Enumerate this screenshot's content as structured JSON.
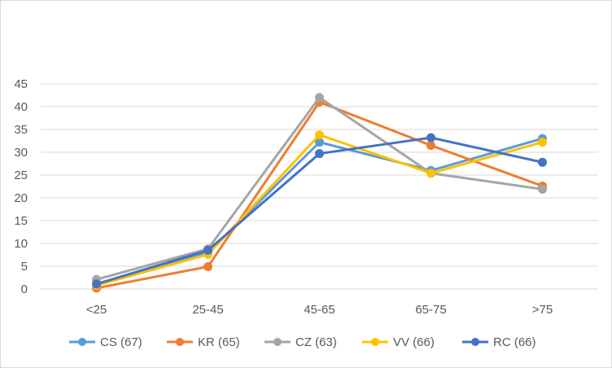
{
  "chart_data": {
    "type": "line",
    "title": "",
    "xlabel": "",
    "ylabel": "",
    "categories": [
      "<25",
      "25-45",
      "45-65",
      "65-75",
      ">75"
    ],
    "ylim": [
      0,
      45
    ],
    "yticks": [
      0,
      5,
      10,
      15,
      20,
      25,
      30,
      35,
      40,
      45
    ],
    "grid": true,
    "legend_position": "bottom",
    "series": [
      {
        "name": "CS (67)",
        "color": "#5B9BD5",
        "values": [
          1.0,
          8.0,
          32.2,
          26.0,
          33.0
        ]
      },
      {
        "name": "KR (65)",
        "color": "#ED7D31",
        "values": [
          0.2,
          4.9,
          41.0,
          31.5,
          22.6
        ]
      },
      {
        "name": "CZ (63)",
        "color": "#A5A5A5",
        "values": [
          2.1,
          8.8,
          42.0,
          25.4,
          21.9
        ]
      },
      {
        "name": "VV (66)",
        "color": "#FFC000",
        "values": [
          0.8,
          7.6,
          33.8,
          25.4,
          32.2
        ]
      },
      {
        "name": "RC (66)",
        "color": "#4472C4",
        "values": [
          1.1,
          8.5,
          29.7,
          33.2,
          27.8
        ]
      }
    ]
  }
}
